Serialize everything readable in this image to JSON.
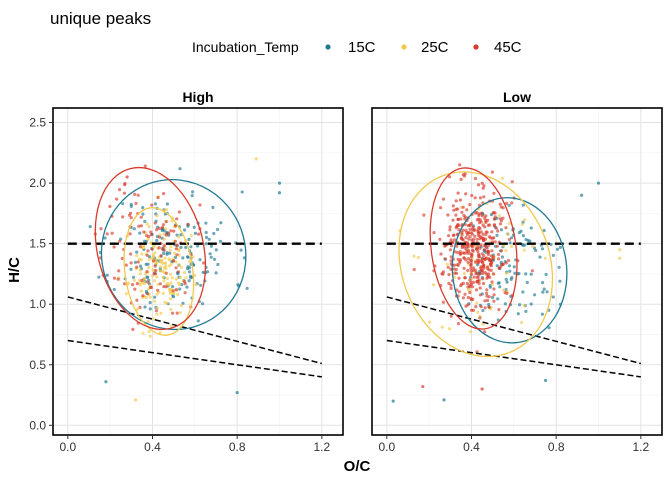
{
  "chart_data": {
    "type": "scatter",
    "title": "unique peaks",
    "xlabel": "O/C",
    "ylabel": "H/C",
    "xlim": [
      -0.07,
      1.3
    ],
    "ylim": [
      -0.08,
      2.62
    ],
    "xticks": [
      "0.0",
      "0.4",
      "0.8",
      "1.2"
    ],
    "xtick_values": [
      0.0,
      0.4,
      0.8,
      1.2
    ],
    "yticks": [
      "0.0",
      "0.5",
      "1.0",
      "1.5",
      "2.0",
      "2.5"
    ],
    "ytick_values": [
      0.0,
      0.5,
      1.0,
      1.5,
      2.0,
      2.5
    ],
    "grid": true,
    "legend": {
      "title": "Incubation_Temp",
      "placement": "top",
      "items": [
        {
          "label": "15C",
          "color": "#1f7a93"
        },
        {
          "label": "25C",
          "color": "#f2c94c"
        },
        {
          "label": "45C",
          "color": "#d93a2b"
        }
      ]
    },
    "reference_lines": [
      {
        "x": [
          0.0,
          1.2
        ],
        "y": [
          1.5,
          1.5
        ],
        "style": "dashed"
      },
      {
        "x": [
          0.0,
          1.2
        ],
        "y": [
          1.06,
          0.51
        ],
        "style": "dashed"
      },
      {
        "x": [
          0.0,
          1.2
        ],
        "y": [
          0.7,
          0.4
        ],
        "style": "dashed"
      }
    ],
    "panels": [
      {
        "label": "High",
        "ellipses": [
          {
            "series": "15C",
            "cx": 0.5,
            "cy": 1.41,
            "rx": 0.34,
            "ry": 0.62,
            "angle": -15
          },
          {
            "series": "25C",
            "cx": 0.43,
            "cy": 1.27,
            "rx": 0.16,
            "ry": 0.53,
            "angle": -8
          },
          {
            "series": "45C",
            "cx": 0.39,
            "cy": 1.46,
            "rx": 0.25,
            "ry": 0.68,
            "angle": -14
          }
        ],
        "clusters": [
          {
            "series": "15C",
            "n": 170,
            "cx": 0.5,
            "cy": 1.41,
            "sx": 0.14,
            "sy": 0.26,
            "seed": 11
          },
          {
            "series": "25C",
            "n": 160,
            "cx": 0.43,
            "cy": 1.27,
            "sx": 0.07,
            "sy": 0.2,
            "seed": 23
          },
          {
            "series": "45C",
            "n": 120,
            "cx": 0.39,
            "cy": 1.46,
            "sx": 0.11,
            "sy": 0.28,
            "seed": 37
          }
        ],
        "extra_points": [
          {
            "series": "15C",
            "x": 0.8,
            "y": 0.27
          },
          {
            "series": "15C",
            "x": 1.0,
            "y": 1.92
          },
          {
            "series": "15C",
            "x": 1.0,
            "y": 2.0
          },
          {
            "series": "15C",
            "x": 0.18,
            "y": 0.36
          },
          {
            "series": "25C",
            "x": 0.89,
            "y": 2.2
          },
          {
            "series": "25C",
            "x": 0.32,
            "y": 0.21
          },
          {
            "series": "45C",
            "x": 0.28,
            "y": 2.05
          }
        ]
      },
      {
        "label": "Low",
        "ellipses": [
          {
            "series": "15C",
            "cx": 0.58,
            "cy": 1.28,
            "rx": 0.27,
            "ry": 0.6,
            "angle": -5
          },
          {
            "series": "25C",
            "cx": 0.42,
            "cy": 1.33,
            "rx": 0.35,
            "ry": 0.78,
            "angle": -20
          },
          {
            "series": "45C",
            "cx": 0.41,
            "cy": 1.46,
            "rx": 0.2,
            "ry": 0.67,
            "angle": -8
          }
        ],
        "clusters": [
          {
            "series": "15C",
            "n": 120,
            "cx": 0.58,
            "cy": 1.3,
            "sx": 0.12,
            "sy": 0.24,
            "seed": 51
          },
          {
            "series": "25C",
            "n": 60,
            "cx": 0.42,
            "cy": 1.35,
            "sx": 0.14,
            "sy": 0.32,
            "seed": 63
          },
          {
            "series": "45C",
            "n": 420,
            "cx": 0.41,
            "cy": 1.45,
            "sx": 0.08,
            "sy": 0.26,
            "seed": 77
          }
        ],
        "extra_points": [
          {
            "series": "15C",
            "x": 0.03,
            "y": 0.2
          },
          {
            "series": "15C",
            "x": 0.27,
            "y": 0.21
          },
          {
            "series": "15C",
            "x": 1.0,
            "y": 2.0
          },
          {
            "series": "15C",
            "x": 0.75,
            "y": 0.37
          },
          {
            "series": "15C",
            "x": 0.92,
            "y": 1.9
          },
          {
            "series": "25C",
            "x": 1.1,
            "y": 1.45
          },
          {
            "series": "25C",
            "x": 1.1,
            "y": 1.38
          },
          {
            "series": "45C",
            "x": 0.45,
            "y": 0.3
          },
          {
            "series": "45C",
            "x": 0.17,
            "y": 0.32
          }
        ]
      }
    ]
  }
}
